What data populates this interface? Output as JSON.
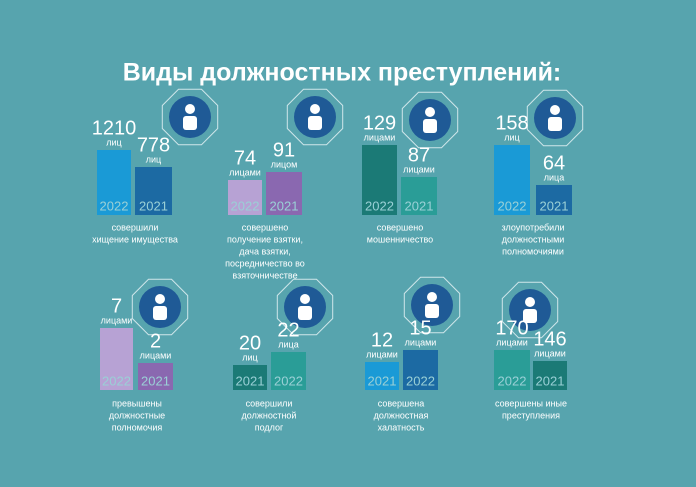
{
  "title": "Виды должностных преступлений:",
  "panels": [
    {
      "items": [
        {
          "value": 1210,
          "unit": "лиц",
          "year": "2022"
        },
        {
          "value": 778,
          "unit": "лиц",
          "year": "2021"
        }
      ],
      "caption": [
        "совершили",
        "хищение имущества"
      ]
    },
    {
      "items": [
        {
          "value": 74,
          "unit": "лицами",
          "year": "2022"
        },
        {
          "value": 91,
          "unit": "лицом",
          "year": "2021"
        }
      ],
      "caption": [
        "совершено",
        "получение взятки,",
        "дача взятки,",
        "посредничество во",
        "взяточничестве"
      ]
    },
    {
      "items": [
        {
          "value": 129,
          "unit": "лицами",
          "year": "2022"
        },
        {
          "value": 87,
          "unit": "лицами",
          "year": "2021"
        }
      ],
      "caption": [
        "совершено",
        "мошенничество"
      ]
    },
    {
      "items": [
        {
          "value": 158,
          "unit": "лиц",
          "year": "2022"
        },
        {
          "value": 64,
          "unit": "лица",
          "year": "2021"
        }
      ],
      "caption": [
        "злоупотребили",
        "должностными",
        "полномочиями"
      ]
    },
    {
      "items": [
        {
          "value": 7,
          "unit": "лицами",
          "year": "2022"
        },
        {
          "value": 2,
          "unit": "лицами",
          "year": "2021"
        }
      ],
      "caption": [
        "превышены",
        "должностные",
        "полномочия"
      ]
    },
    {
      "items": [
        {
          "value": 20,
          "unit": "лиц",
          "year": "2021"
        },
        {
          "value": 22,
          "unit": "лица",
          "year": "2022"
        }
      ],
      "caption": [
        "совершили",
        "должностной",
        "подлог"
      ]
    },
    {
      "items": [
        {
          "value": 12,
          "unit": "лицами",
          "year": "2021"
        },
        {
          "value": 15,
          "unit": "лицами",
          "year": "2022"
        }
      ],
      "caption": [
        "совершена",
        "должностная",
        "халатность"
      ]
    },
    {
      "items": [
        {
          "value": 170,
          "unit": "лицами",
          "year": "2022"
        },
        {
          "value": 146,
          "unit": "лицами",
          "year": "2021"
        }
      ],
      "caption": [
        "совершены иные",
        "преступления"
      ]
    }
  ]
}
